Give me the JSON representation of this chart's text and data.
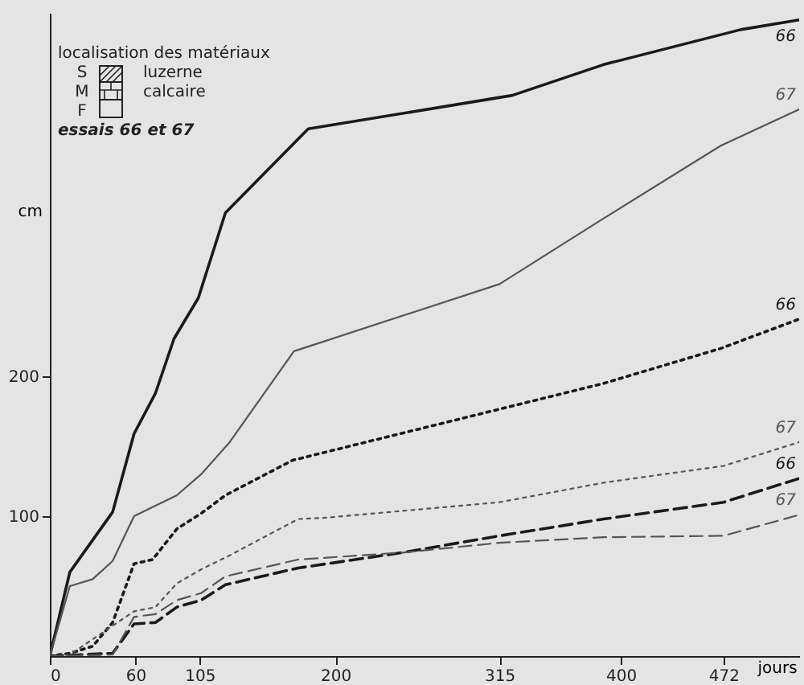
{
  "chart_data": {
    "type": "line",
    "xlabel": "jours",
    "ylabel": "cm",
    "xlim": [
      0,
      525
    ],
    "ylim": [
      0,
      460
    ],
    "xticks": [
      0,
      60,
      105,
      200,
      315,
      400,
      472
    ],
    "yticks": [
      100,
      200
    ],
    "grid": false,
    "marker": "none",
    "annotations": [
      "localisation des matériaux",
      "S",
      "M",
      "F",
      "luzerne",
      "calcaire",
      "essais 66 et 67"
    ],
    "series": [
      {
        "name": "66",
        "color": "#1a1a1a",
        "line_style": "solid",
        "x": [
          0,
          14,
          44,
          59,
          74,
          87,
          104,
          123,
          181,
          324,
          388,
          484,
          525
        ],
        "values": [
          0,
          60,
          103,
          159,
          188,
          227,
          256,
          317,
          377,
          401,
          423,
          448,
          455
        ]
      },
      {
        "name": "67",
        "color": "#555555",
        "line_style": "solid",
        "x": [
          0,
          14,
          30,
          44,
          59,
          89,
          106,
          126,
          171,
          315,
          388,
          470,
          525
        ],
        "values": [
          0,
          50,
          55,
          68,
          100,
          115,
          130,
          153,
          218,
          266,
          313,
          365,
          391
        ]
      },
      {
        "name": "66",
        "color": "#1a1a1a",
        "line_style": "dotted",
        "x": [
          0,
          14,
          30,
          44,
          59,
          72,
          89,
          106,
          123,
          170,
          388,
          470,
          525
        ],
        "values": [
          0,
          2,
          7,
          24,
          66,
          69,
          91,
          102,
          115,
          140,
          195,
          220,
          241
        ]
      },
      {
        "name": "67",
        "color": "#555555",
        "line_style": "dotted",
        "x": [
          0,
          14,
          59,
          74,
          89,
          106,
          126,
          174,
          194,
          315,
          388,
          472,
          525
        ],
        "values": [
          0,
          1,
          32,
          35,
          52,
          62,
          72,
          98,
          99,
          110,
          124,
          136,
          153
        ]
      },
      {
        "name": "66",
        "color": "#1a1a1a",
        "line_style": "dashed",
        "x": [
          0,
          44,
          59,
          74,
          89,
          106,
          123,
          174,
          247,
          315,
          388,
          472,
          525
        ],
        "values": [
          0,
          2,
          23,
          24,
          35,
          40,
          51,
          63,
          74,
          86,
          98,
          110,
          127
        ]
      },
      {
        "name": "67",
        "color": "#555555",
        "line_style": "dashed",
        "x": [
          0,
          44,
          59,
          74,
          89,
          106,
          123,
          174,
          247,
          315,
          388,
          472,
          525
        ],
        "values": [
          0,
          1,
          28,
          30,
          40,
          45,
          57,
          69,
          74,
          81,
          85,
          86,
          101
        ]
      }
    ]
  }
}
